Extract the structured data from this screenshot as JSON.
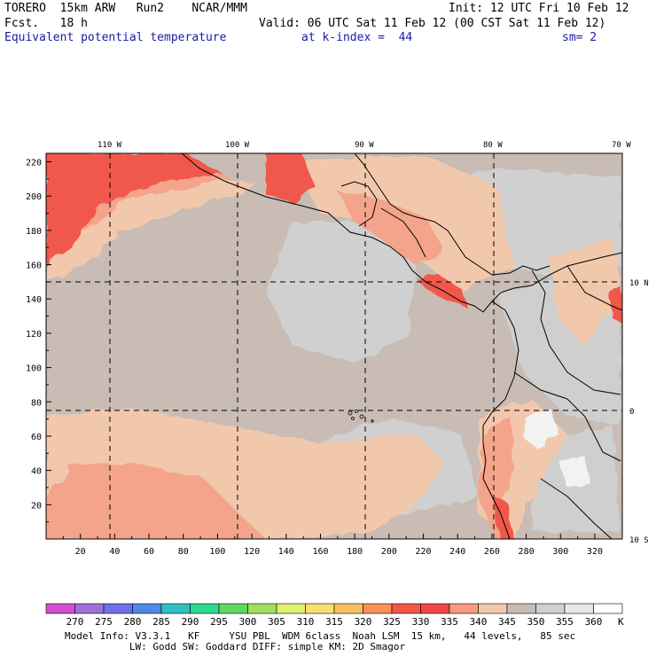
{
  "header": {
    "line1_left": "TORERO  15km ARW   Run2    NCAR/MMM",
    "line1_right": "Init: 12 UTC Fri 10 Feb 12",
    "line2_left": "Fcst.   18 h",
    "line2_right": "Valid: 06 UTC Sat 11 Feb 12 (00 CST Sat 11 Feb 12)",
    "line3_field": "Equivalent potential temperature",
    "line3_level": "at k-index =  44",
    "line3_sm": "sm= 2"
  },
  "map": {
    "x_ticks": [
      "20",
      "40",
      "60",
      "80",
      "100",
      "120",
      "140",
      "160",
      "180",
      "200",
      "220",
      "240",
      "260",
      "280",
      "300",
      "320"
    ],
    "y_ticks": [
      "20",
      "40",
      "60",
      "80",
      "100",
      "120",
      "140",
      "160",
      "180",
      "200",
      "220"
    ],
    "lon_labels": [
      "110 W",
      "100 W",
      "90 W",
      "80 W",
      "70 W"
    ],
    "lat_labels": [
      "10 N",
      "0",
      "10 S"
    ],
    "colors": {
      "gray": "#c8bcb4",
      "lightgray": "#d0d0d0",
      "peach": "#f2c8ac",
      "salmon": "#f3a48a",
      "red": "#f0584c",
      "white": "#f2f2f2"
    }
  },
  "colorbar": {
    "labels": [
      "270",
      "275",
      "280",
      "285",
      "290",
      "295",
      "300",
      "305",
      "310",
      "315",
      "320",
      "325",
      "330",
      "335",
      "340",
      "345",
      "350",
      "355",
      "360"
    ],
    "unit": "K",
    "colors": [
      "#d050d0",
      "#a070d8",
      "#7070e8",
      "#5088e8",
      "#30c0c0",
      "#30d890",
      "#60d860",
      "#a0e060",
      "#e0f070",
      "#f8e070",
      "#f8c060",
      "#f89058",
      "#f05848",
      "#f04848",
      "#f89a80",
      "#f2c8ac",
      "#c8bcb4",
      "#d0d0d0",
      "#e8e8e8",
      "#ffffff"
    ]
  },
  "footer": {
    "line1": "Model Info: V3.3.1   KF     YSU PBL  WDM 6class  Noah LSM  15 km,   44 levels,   85 sec",
    "line2": "           LW: Godd SW: Goddard DIFF: simple KM: 2D Smagor"
  }
}
